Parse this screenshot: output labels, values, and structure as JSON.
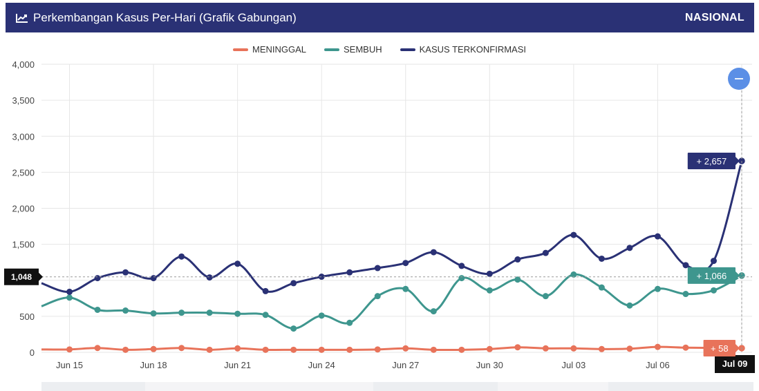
{
  "header": {
    "title": "Perkembangan Kasus Per-Hari (Grafik Gabungan)",
    "title_icon": "line-chart-icon",
    "region": "NASIONAL",
    "background": "#2a3175"
  },
  "chart_data": {
    "type": "line",
    "title": "Perkembangan Kasus Per-Hari (Grafik Gabungan)",
    "xlabel": "",
    "ylabel": "",
    "x": [
      "Jun 14",
      "Jun 15",
      "Jun 16",
      "Jun 17",
      "Jun 18",
      "Jun 19",
      "Jun 20",
      "Jun 21",
      "Jun 22",
      "Jun 23",
      "Jun 24",
      "Jun 25",
      "Jun 26",
      "Jun 27",
      "Jun 28",
      "Jun 29",
      "Jun 30",
      "Jul 01",
      "Jul 02",
      "Jul 03",
      "Jul 04",
      "Jul 05",
      "Jul 06",
      "Jul 07",
      "Jul 08",
      "Jul 09"
    ],
    "x_tick_labels": [
      "Jun 15",
      "Jun 18",
      "Jun 21",
      "Jun 24",
      "Jun 27",
      "Jun 30",
      "Jul 03",
      "Jul 06",
      "Jul 09"
    ],
    "ylim": [
      0,
      4000
    ],
    "y_ticks": [
      "0",
      "500",
      "1,000",
      "1,500",
      "2,000",
      "2,500",
      "3,000",
      "3,500",
      "4,000"
    ],
    "y_tick_values": [
      0,
      500,
      1000,
      1500,
      2000,
      2500,
      3000,
      3500,
      4000
    ],
    "grid": true,
    "legend_position": "top-center",
    "series": [
      {
        "name": "MENINGGAL",
        "color": "#e8735a",
        "values": [
          40,
          40,
          60,
          35,
          45,
          60,
          35,
          55,
          35,
          35,
          35,
          35,
          40,
          55,
          35,
          35,
          45,
          70,
          55,
          55,
          45,
          50,
          75,
          65,
          60,
          58
        ]
      },
      {
        "name": "SEMBUH",
        "color": "#3e968e",
        "values": [
          640,
          760,
          590,
          580,
          540,
          550,
          550,
          535,
          520,
          330,
          510,
          410,
          780,
          880,
          570,
          1030,
          860,
          1010,
          780,
          1080,
          900,
          650,
          880,
          810,
          860,
          1066
        ]
      },
      {
        "name": "KASUS TERKONFIRMASI",
        "color": "#2a3175",
        "values": [
          960,
          840,
          1030,
          1110,
          1030,
          1330,
          1040,
          1230,
          850,
          960,
          1050,
          1110,
          1170,
          1240,
          1390,
          1200,
          1090,
          1290,
          1380,
          1630,
          1300,
          1450,
          1610,
          1210,
          1270,
          2657
        ]
      }
    ],
    "hover": {
      "x_label": "Jul 09",
      "crosshair_value": "1,048",
      "tooltips": [
        {
          "series": "KASUS TERKONFIRMASI",
          "label": "+ 2,657"
        },
        {
          "series": "SEMBUH",
          "label": "+ 1,066"
        },
        {
          "series": "MENINGGAL",
          "label": "+ 58"
        }
      ]
    }
  },
  "zoom_button": {
    "icon": "minus-icon",
    "color": "#5b8fe6"
  }
}
